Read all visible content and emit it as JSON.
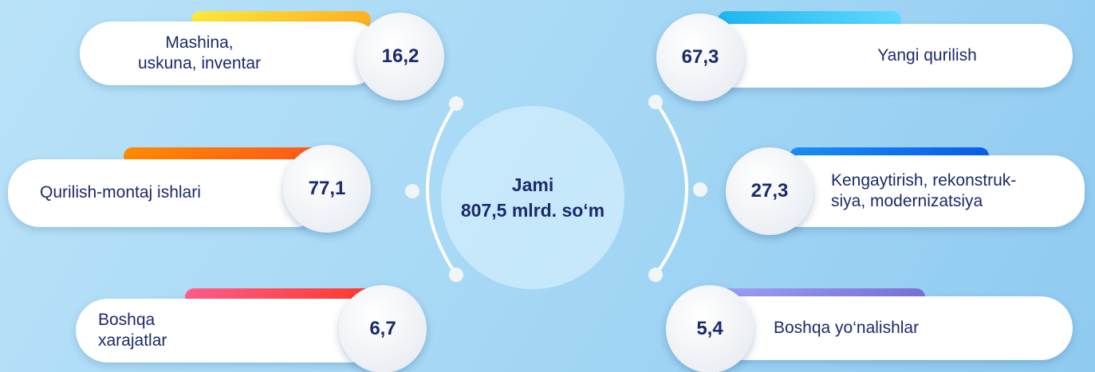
{
  "center": {
    "title": "Jami",
    "total": "807,5 mlrd. so‘m"
  },
  "items": [
    {
      "label": [
        "Mashina,",
        "uskuna, inventar"
      ],
      "value": "16,2"
    },
    {
      "label": [
        "Qurilish-montaj ishlari"
      ],
      "value": "77,1"
    },
    {
      "label": [
        "Boshqa",
        "xarajatlar"
      ],
      "value": "6,7"
    },
    {
      "label": [
        "Yangi qurilish"
      ],
      "value": "67,3"
    },
    {
      "label": [
        "Kengaytirish, rekonstruk-",
        "siya, modernizatsiya"
      ],
      "value": "27,3"
    },
    {
      "label": [
        "Boshqa yo‘nalishlar"
      ],
      "value": "5,4"
    }
  ]
}
